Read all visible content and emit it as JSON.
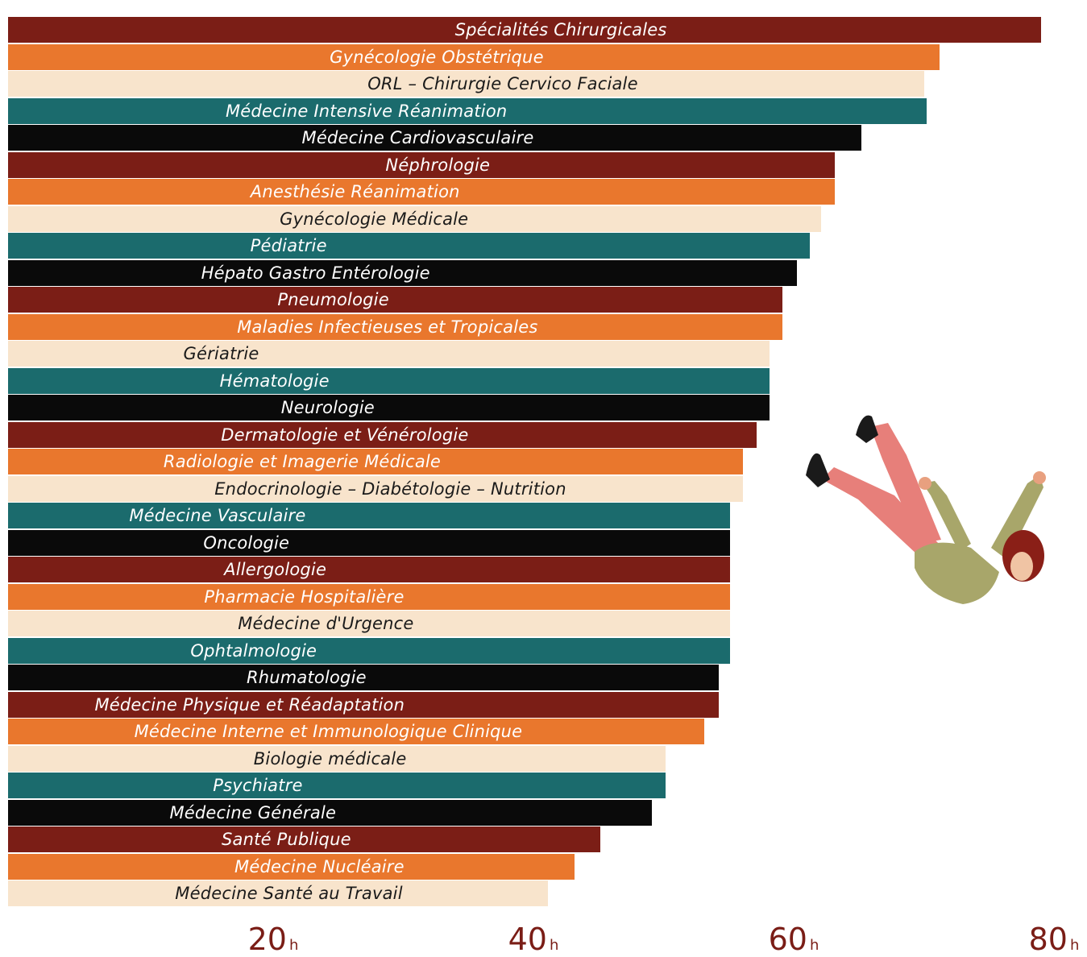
{
  "chart_data": {
    "type": "bar",
    "orientation": "horizontal",
    "unit_suffix": "h",
    "xlim": [
      0,
      80
    ],
    "x_ticks": [
      20,
      40,
      60,
      80
    ],
    "grid": false,
    "legend": "none",
    "categories": [
      "Spécialités Chirurgicales",
      "Gynécologie Obstétrique",
      "ORL – Chirurgie Cervico Faciale",
      "Médecine Intensive Réanimation",
      "Médecine Cardiovasculaire",
      "Néphrologie",
      "Anesthésie Réanimation",
      "Gynécologie Médicale",
      "Pédiatrie",
      "Hépato Gastro Entérologie",
      "Pneumologie",
      "Maladies Infectieuses et Tropicales",
      "Gériatrie",
      "Hématologie",
      "Neurologie",
      "Dermatologie et Vénérologie",
      "Radiologie et Imagerie Médicale",
      "Endocrinologie – Diabétologie – Nutrition",
      "Médecine Vasculaire",
      "Oncologie",
      "Allergologie",
      "Pharmacie Hospitalière",
      "Médecine d'Urgence",
      "Ophtalmologie",
      "Rhumatologie",
      "Médecine Physique et Réadaptation",
      "Médecine Interne et Immunologique Clinique",
      "Biologie médicale",
      "Psychiatre",
      "Médecine Générale",
      "Santé Publique",
      "Médecine Nucléaire",
      "Médecine Santé au Travail"
    ],
    "values": [
      79.4,
      71.6,
      70.4,
      70.6,
      65.6,
      63.5,
      63.5,
      62.5,
      61.6,
      60.6,
      59.5,
      59.5,
      58.5,
      58.5,
      58.5,
      57.5,
      56.5,
      56.5,
      55.5,
      55.5,
      55.5,
      55.5,
      55.5,
      55.5,
      54.6,
      54.6,
      53.5,
      50.5,
      50.5,
      49.5,
      45.5,
      43.5,
      41.5
    ],
    "palette": [
      "#7b1e16",
      "#e9772d",
      "#f8e4cc",
      "#1b6b6d",
      "#0a0a0a"
    ],
    "text_colors": [
      "#ffffff",
      "#ffffff",
      "#1a1a1a",
      "#ffffff",
      "#ffffff"
    ]
  }
}
